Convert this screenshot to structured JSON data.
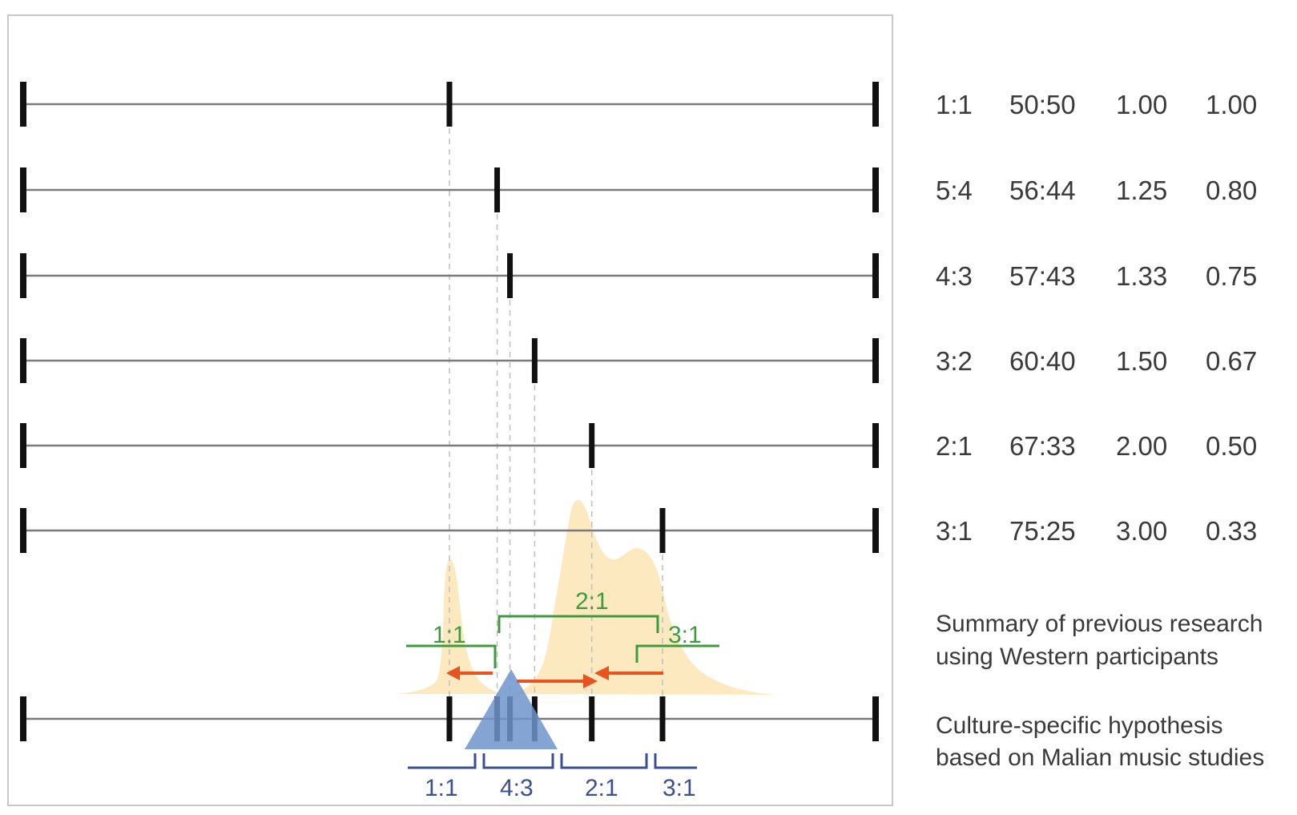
{
  "rhythm_rows": [
    {
      "ratio": "1:1",
      "percent": "50:50",
      "ratio_value": "1.00",
      "inverse": "1.00",
      "onset_fraction": 0.5
    },
    {
      "ratio": "5:4",
      "percent": "56:44",
      "ratio_value": "1.25",
      "inverse": "0.80",
      "onset_fraction": 0.556
    },
    {
      "ratio": "4:3",
      "percent": "57:43",
      "ratio_value": "1.33",
      "inverse": "0.75",
      "onset_fraction": 0.571
    },
    {
      "ratio": "3:2",
      "percent": "60:40",
      "ratio_value": "1.50",
      "inverse": "0.67",
      "onset_fraction": 0.6
    },
    {
      "ratio": "2:1",
      "percent": "67:33",
      "ratio_value": "2.00",
      "inverse": "0.50",
      "onset_fraction": 0.667
    },
    {
      "ratio": "3:1",
      "percent": "75:25",
      "ratio_value": "3.00",
      "inverse": "0.33",
      "onset_fraction": 0.75
    }
  ],
  "western_summary": {
    "caption_line1": "Summary of previous research",
    "caption_line2": "using Western participants",
    "category_labels": [
      "1:1",
      "2:1",
      "3:1"
    ],
    "color": "#3f9a3f",
    "distribution_color": "#fde9bf",
    "arrow_color": "#e8531f"
  },
  "malian_hypothesis": {
    "caption_line1": "Culture-specific hypothesis",
    "caption_line2": "based on Malian music studies",
    "category_labels": [
      "1:1",
      "4:3",
      "2:1",
      "3:1"
    ],
    "color": "#3d4f94",
    "triangle_color": "#6f94cc"
  },
  "colors": {
    "timeline": "#7a7a7a",
    "tick": "#111111",
    "guide": "#bfbfbf",
    "frame": "#c8c8c8"
  }
}
